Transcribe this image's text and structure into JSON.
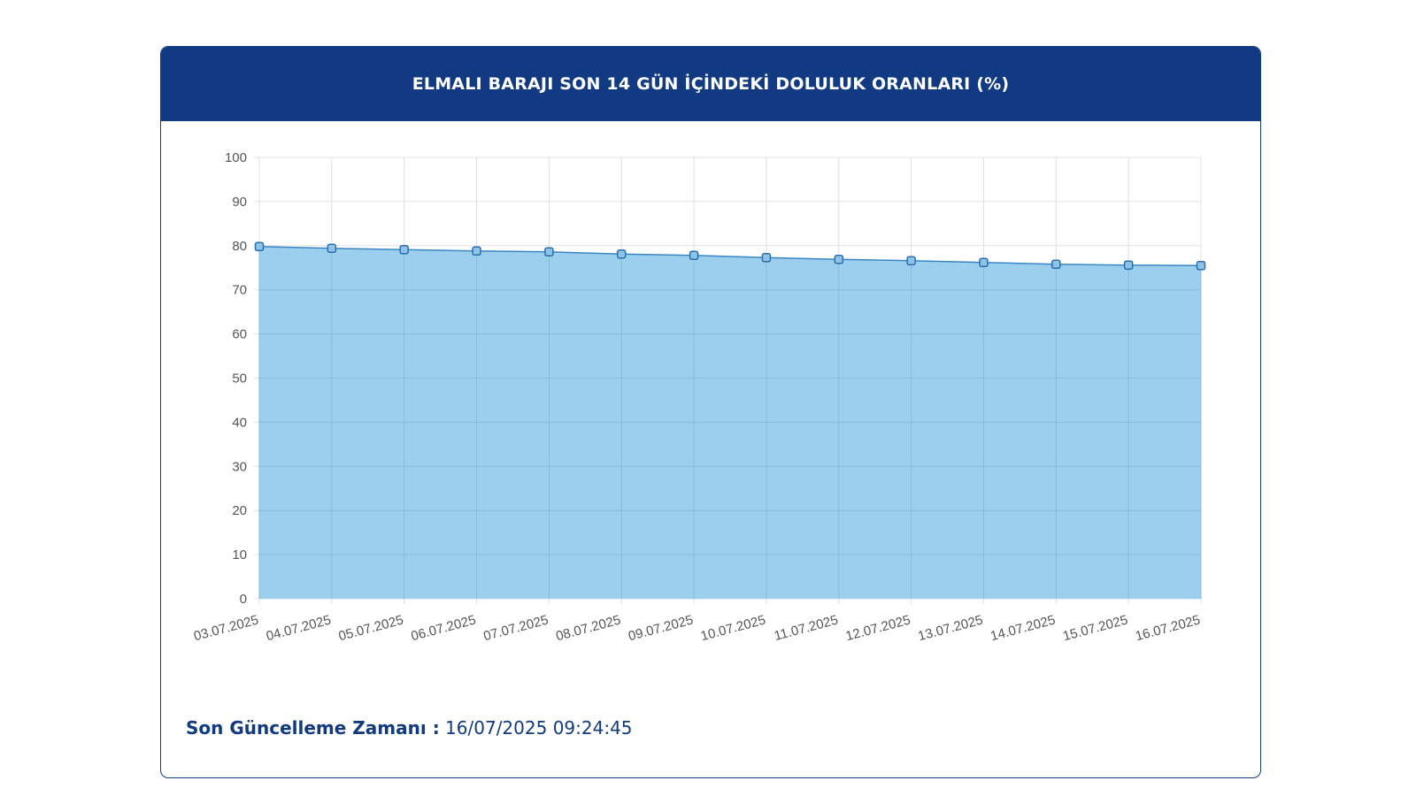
{
  "header": {
    "title": "ELMALI BARAJI SON 14 GÜN İÇİNDEKİ DOLULUK ORANLARI (%)"
  },
  "footer": {
    "update_label": "Son Güncelleme Zamanı :",
    "update_value": " 16/07/2025 09:24:45"
  },
  "colors": {
    "header_bg": "#113a82",
    "line": "#3a86c4",
    "fill": "#9ccfed",
    "marker": "#2a6fb0"
  },
  "chart_data": {
    "type": "area",
    "title": "ELMALI BARAJI SON 14 GÜN İÇİNDEKİ DOLULUK ORANLARI (%)",
    "xlabel": "",
    "ylabel": "",
    "ylim": [
      0,
      100
    ],
    "yticks": [
      "0",
      "10",
      "20",
      "30",
      "40",
      "50",
      "60",
      "70",
      "80",
      "90",
      "100"
    ],
    "grid": true,
    "legend": "none",
    "categories": [
      "03.07.2025",
      "04.07.2025",
      "05.07.2025",
      "06.07.2025",
      "07.07.2025",
      "08.07.2025",
      "09.07.2025",
      "10.07.2025",
      "11.07.2025",
      "12.07.2025",
      "13.07.2025",
      "14.07.2025",
      "15.07.2025",
      "16.07.2025"
    ],
    "series": [
      {
        "values": [
          79.8,
          79.4,
          79.1,
          78.8,
          78.6,
          78.1,
          77.8,
          77.3,
          76.9,
          76.6,
          76.2,
          75.8,
          75.6,
          75.5
        ]
      }
    ]
  }
}
